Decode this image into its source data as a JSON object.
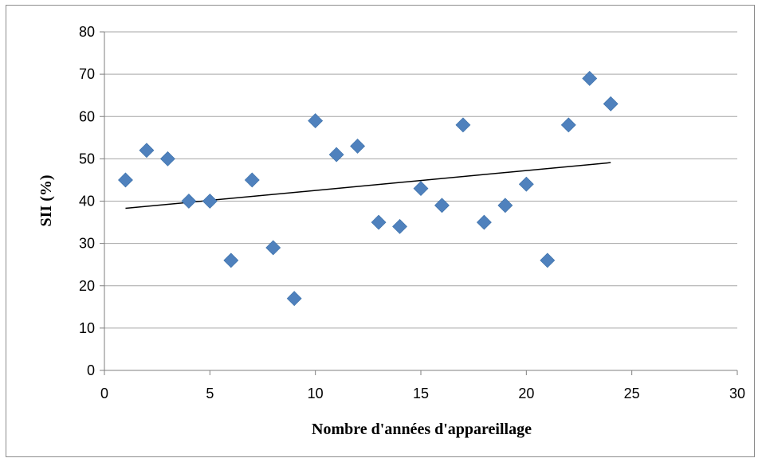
{
  "chart_data": {
    "type": "scatter",
    "title": "",
    "xlabel": "Nombre d'années d'appareillage",
    "ylabel": "SII (%)",
    "xlim": [
      0,
      30
    ],
    "ylim": [
      0,
      80
    ],
    "x_ticks": [
      0,
      5,
      10,
      15,
      20,
      25,
      30
    ],
    "y_ticks": [
      0,
      10,
      20,
      30,
      40,
      50,
      60,
      70,
      80
    ],
    "grid": "horizontal",
    "legend": "none",
    "marker": "diamond",
    "colors": {
      "marker": "#4f81bd",
      "trendline": "#000000",
      "grid": "#a6a6a6"
    },
    "series": [
      {
        "x": [
          1,
          2,
          3,
          4,
          5,
          6,
          7,
          8,
          9,
          10,
          11,
          12,
          13,
          14,
          15,
          16,
          17,
          18,
          19,
          20,
          21,
          22,
          23,
          24
        ],
        "y": [
          45,
          52,
          50,
          40,
          40,
          26,
          45,
          29,
          17,
          59,
          51,
          53,
          35,
          34,
          43,
          39,
          58,
          35,
          39,
          44,
          26,
          58,
          69,
          63
        ]
      }
    ],
    "trendline": {
      "type": "linear",
      "x": [
        1,
        24
      ],
      "y": [
        38.3,
        49.1
      ]
    }
  }
}
